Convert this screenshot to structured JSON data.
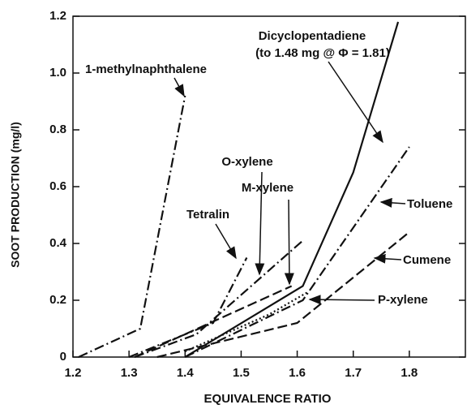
{
  "chart_data": {
    "type": "line",
    "xlabel": "EQUIVALENCE RATIO",
    "ylabel": "SOOT PRODUCTION (mg/l)",
    "annotations": [
      "(to 1.48 mg @ Φ = 1.81)"
    ],
    "xlim": [
      1.2,
      1.9
    ],
    "xticks": [
      1.2,
      1.3,
      1.4,
      1.5,
      1.6,
      1.7,
      1.8
    ],
    "ylim": [
      0,
      1.2
    ],
    "yticks": [
      0,
      0.2,
      0.4,
      0.6,
      0.8,
      {
        "value": 1,
        "label": "1.0"
      },
      1.2
    ],
    "series": [
      {
        "name": "1-methylnaphthalene",
        "color": "#111111",
        "linestyle": "dashdot",
        "x": [
          1.21,
          1.32,
          1.4
        ],
        "values": [
          0,
          0.1,
          0.92
        ]
      },
      {
        "name": "Dicyclopentadiene",
        "color": "#111111",
        "linestyle": "solid",
        "x": [
          1.4,
          1.61,
          1.7,
          1.78
        ],
        "values": [
          0,
          0.25,
          0.65,
          1.18
        ]
      },
      {
        "name": "Toluene",
        "color": "#111111",
        "linestyle": "dashdot",
        "x": [
          1.4,
          1.61,
          1.8
        ],
        "values": [
          0,
          0.2,
          0.74
        ]
      },
      {
        "name": "Cumene",
        "color": "#111111",
        "linestyle": "dashed",
        "x": [
          1.35,
          1.6,
          1.8
        ],
        "values": [
          0,
          0.12,
          0.44
        ]
      },
      {
        "name": "P-xylene",
        "color": "#111111",
        "linestyle": "dotted",
        "x": [
          1.4,
          1.55,
          1.62
        ],
        "values": [
          0.02,
          0.15,
          0.23
        ]
      },
      {
        "name": "Tetralin",
        "color": "#111111",
        "linestyle": "dashdot",
        "x": [
          1.3,
          1.45,
          1.51
        ],
        "values": [
          0,
          0.12,
          0.35
        ]
      },
      {
        "name": "O-xylene",
        "color": "#111111",
        "linestyle": "dashdot",
        "x": [
          1.31,
          1.42,
          1.61
        ],
        "values": [
          0,
          0.08,
          0.41
        ]
      },
      {
        "name": "M-xylene",
        "color": "#111111",
        "linestyle": "dashed",
        "x": [
          1.31,
          1.59
        ],
        "values": [
          0,
          0.25
        ]
      }
    ]
  }
}
